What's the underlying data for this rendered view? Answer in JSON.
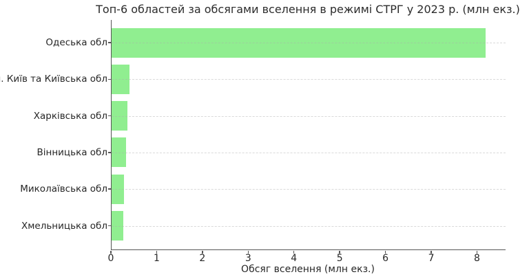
{
  "chart_data": {
    "type": "bar",
    "orientation": "horizontal",
    "title": "Топ-6 областей за обсягами вселення в режимі СТРГ у 2023 р. (млн екз.)",
    "xlabel": "Обсяг вселення (млн екз.)",
    "categories": [
      "Одеська обл",
      "м. Київ та Київська обл",
      "Харківська обл",
      "Вінницька обл",
      "Миколаївська обл",
      "Хмельницька обл"
    ],
    "values": [
      8.18,
      0.39,
      0.35,
      0.32,
      0.27,
      0.25
    ],
    "xlim": [
      0,
      8.61
    ],
    "xticks": [
      0,
      1,
      2,
      3,
      4,
      5,
      6,
      7,
      8
    ],
    "bar_color": "#90EE90",
    "spine_color": "#555555",
    "text_color": "#262626",
    "grid": "horizontal-dashed",
    "legend": "none"
  }
}
